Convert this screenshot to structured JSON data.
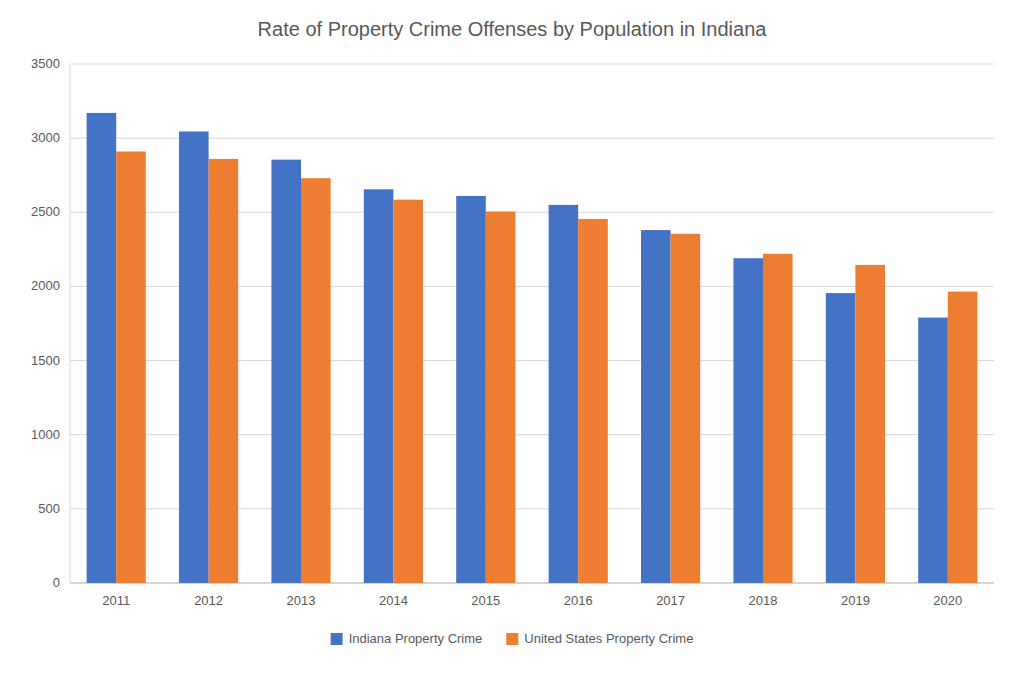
{
  "chart_data": {
    "type": "bar",
    "title": "Rate of Property Crime Offenses by Population in Indiana",
    "categories": [
      "2011",
      "2012",
      "2013",
      "2014",
      "2015",
      "2016",
      "2017",
      "2018",
      "2019",
      "2020"
    ],
    "series": [
      {
        "name": "Indiana Property Crime",
        "color": "#4472C4",
        "values": [
          3170,
          3045,
          2855,
          2655,
          2610,
          2550,
          2380,
          2190,
          1955,
          1790
        ]
      },
      {
        "name": "United States Property Crime",
        "color": "#ED7D31",
        "values": [
          2910,
          2860,
          2730,
          2585,
          2505,
          2455,
          2355,
          2220,
          2145,
          1965
        ]
      }
    ],
    "ylim": [
      0,
      3500
    ],
    "yticks": [
      0,
      500,
      1000,
      1500,
      2000,
      2500,
      3000,
      3500
    ],
    "grid": true,
    "legend": "bottom"
  }
}
